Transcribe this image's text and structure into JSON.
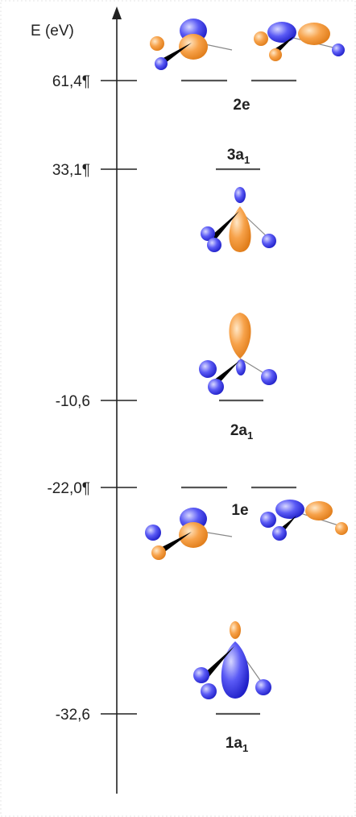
{
  "axis": {
    "label": "E (eV)"
  },
  "ticks": [
    "61,4¶",
    "33,1¶",
    "-10,6",
    "-22,0¶",
    "-32,6"
  ],
  "levels": [
    {
      "label": "2e"
    },
    {
      "label": "3a",
      "sub": "1"
    },
    {
      "label": "2a",
      "sub": "1"
    },
    {
      "label": "1e"
    },
    {
      "label": "1a",
      "sub": "1"
    }
  ]
}
